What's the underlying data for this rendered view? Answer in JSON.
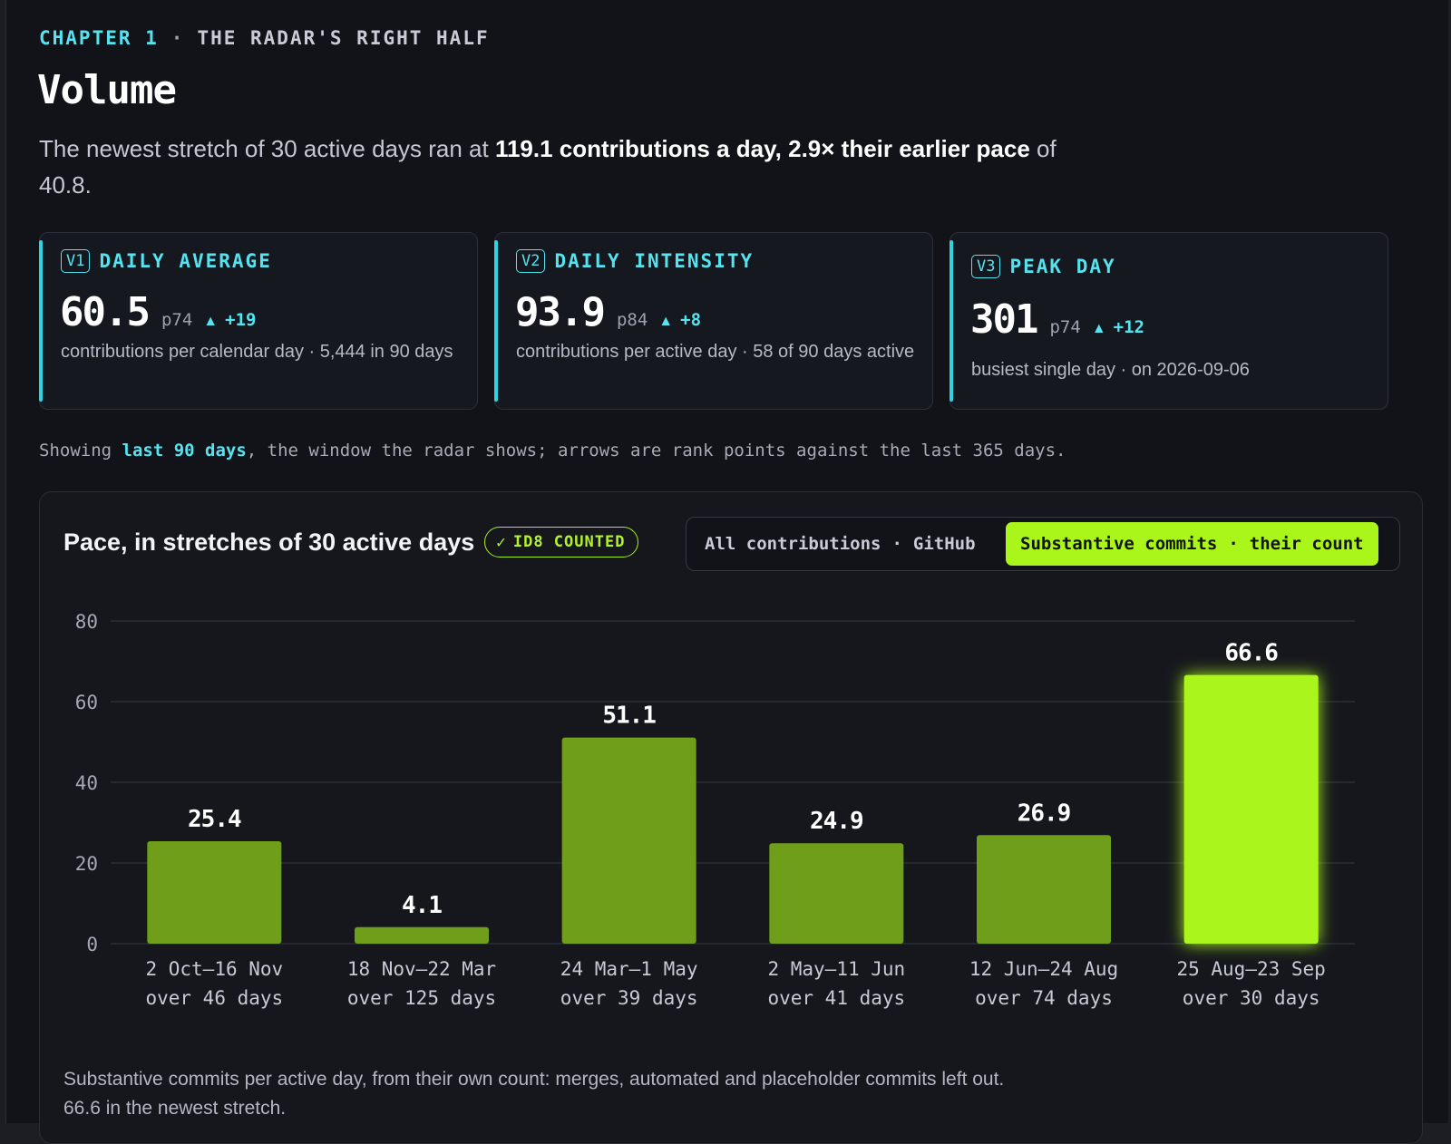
{
  "chapter": {
    "number": "Chapter 1",
    "title": "The radar's right half"
  },
  "page_title": "Volume",
  "lede": {
    "before": "The newest stretch of 30 active days ran at ",
    "bold": "119.1 contributions a day, 2.9× their earlier pace",
    "after": " of 40.8."
  },
  "cards": [
    {
      "tag": "V1",
      "label": "Daily average",
      "value": "60.5",
      "percentile": "p74",
      "delta": "+19",
      "description": "contributions per calendar day · 5,444 in 90 days"
    },
    {
      "tag": "V2",
      "label": "Daily intensity",
      "value": "93.9",
      "percentile": "p84",
      "delta": "+8",
      "description": "contributions per active day · 58 of 90 days active"
    },
    {
      "tag": "V3",
      "label": "Peak day",
      "value": "301",
      "percentile": "p74",
      "delta": "+12",
      "description": "busiest single day · on 2026-09-06"
    }
  ],
  "window_note": {
    "before": "Showing ",
    "highlight": "last 90 days",
    "after": ", the window the radar shows; arrows are rank points against the last 365 days."
  },
  "panel": {
    "title": "Pace, in stretches of 30 active days",
    "badge": "ID8 counted",
    "toggle": {
      "option1_a": "All contributions",
      "option1_b": "GitHub",
      "option2_a": "Substantive commits",
      "option2_b": "their count",
      "separator": "·"
    },
    "footnote": "Substantive commits per active day, from their own count: merges, automated and placeholder commits left out. 66.6 in the newest stretch."
  },
  "colors": {
    "accent": "#55e3f0",
    "bar": "#6f9f1a",
    "bar_highlight": "#aaf51a"
  },
  "chart_data": {
    "type": "bar",
    "categories": [
      "2 Oct–16 Nov",
      "18 Nov–22 Mar",
      "24 Mar–1 May",
      "2 May–11 Jun",
      "12 Jun–24 Aug",
      "25 Aug–23 Sep"
    ],
    "sublabels": [
      "over 46 days",
      "over 125 days",
      "over 39 days",
      "over 41 days",
      "over 74 days",
      "over 30 days"
    ],
    "values": [
      25.4,
      4.1,
      51.1,
      24.9,
      26.9,
      66.6
    ],
    "labels": [
      "25.4",
      "4.1",
      "51.1",
      "24.9",
      "26.9",
      "66.6"
    ],
    "highlight_index": 5,
    "ylim": [
      0,
      80
    ],
    "yticks": [
      0,
      20,
      40,
      60,
      80
    ],
    "grid": true
  }
}
